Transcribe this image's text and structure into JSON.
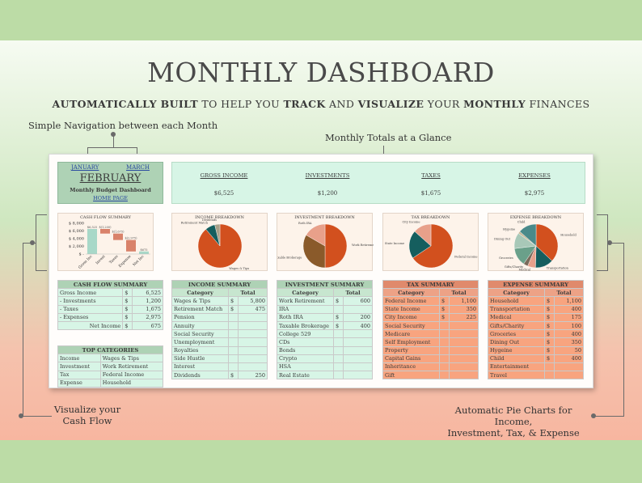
{
  "header": {
    "title": "MONTHLY DASHBOARD",
    "subtitle_parts": [
      {
        "text": "AUTOMATICALLY BUILT",
        "bold": true
      },
      {
        "text": " TO HELP YOU ",
        "bold": false
      },
      {
        "text": "TRACK",
        "bold": true
      },
      {
        "text": " AND ",
        "bold": false
      },
      {
        "text": "VISUALIZE",
        "bold": true
      },
      {
        "text": " YOUR ",
        "bold": false
      },
      {
        "text": "MONTHLY",
        "bold": true
      },
      {
        "text": " FINANCES",
        "bold": false
      }
    ]
  },
  "callouts": {
    "navigation": "Simple Navigation between each Month",
    "totals": "Monthly Totals at a Glance",
    "cashflow_line1": "Visualize your",
    "cashflow_line2": "Cash Flow",
    "pies_line1": "Automatic Pie Charts for Income,",
    "pies_line2": "Investment, Tax, & Expense"
  },
  "nav": {
    "prev": "JANUARY",
    "next": "MARCH",
    "month": "FEBRUARY",
    "subtitle": "Monthly Budget Dashboard",
    "home": "HOME PAGE"
  },
  "totals": [
    {
      "label": "GROSS INCOME",
      "value": "$6,525"
    },
    {
      "label": "INVESTMENTS",
      "value": "$1,200"
    },
    {
      "label": "TAXES",
      "value": "$1,675"
    },
    {
      "label": "EXPENSES",
      "value": "$2,975"
    }
  ],
  "chart_data": [
    {
      "type": "bar",
      "title": "CASH FLOW SUMMARY",
      "categories": [
        "Gross Inc",
        "Invest",
        "Taxes",
        "Expense",
        "Net Inc"
      ],
      "values": [
        6525,
        -1200,
        -1675,
        -2975,
        675
      ],
      "data_labels": [
        "$6,525",
        "$(1,200)",
        "$(1,675)",
        "$(2,975)",
        "$675"
      ],
      "y_ticks": [
        "$ 8,000",
        "$ 6,000",
        "$ 4,000",
        "$ 2,000",
        "$ -"
      ],
      "ylim": [
        0,
        8000
      ],
      "colors": [
        "#a8d8c8",
        "#d9826a",
        "#d9826a",
        "#d9826a",
        "#a8d8c8"
      ]
    },
    {
      "type": "pie",
      "title": "INCOME BREAKDOWN",
      "labels": [
        "Wages & Tips",
        "Retirement Match",
        "Dividends"
      ],
      "values": [
        5800,
        475,
        250
      ],
      "colors": [
        "#d2501e",
        "#155e5e",
        "#a8a088"
      ]
    },
    {
      "type": "pie",
      "title": "INVESTMENT BREAKDOWN",
      "labels": [
        "Work Retirement",
        "Taxable Brokerage",
        "Roth IRA"
      ],
      "values": [
        600,
        400,
        200
      ],
      "colors": [
        "#d2501e",
        "#8a5a2a",
        "#e8a08a"
      ]
    },
    {
      "type": "pie",
      "title": "TAX BREAKDOWN",
      "labels": [
        "Federal Income",
        "State Income",
        "City Income"
      ],
      "values": [
        1100,
        350,
        225
      ],
      "colors": [
        "#d2501e",
        "#155e5e",
        "#e8a08a"
      ]
    },
    {
      "type": "pie",
      "title": "EXPENSE BREAKDOWN",
      "labels": [
        "Household",
        "Transportation",
        "Medical",
        "Gifts/Charity",
        "Groceries",
        "Dining Out",
        "Hygeine",
        "Child"
      ],
      "values": [
        1100,
        400,
        175,
        100,
        400,
        350,
        50,
        400
      ],
      "colors": [
        "#d2501e",
        "#155e5e",
        "#e8a08a",
        "#7a6a5a",
        "#6aa08a",
        "#a8c8b8",
        "#c8b898",
        "#4a8a8a"
      ]
    }
  ],
  "cashflow_summary": {
    "title": "CASH FLOW SUMMARY",
    "rows": [
      {
        "label": "Gross Income",
        "cur": "$",
        "value": "6,525"
      },
      {
        "label": "- Investments",
        "cur": "$",
        "value": "1,200"
      },
      {
        "label": "- Taxes",
        "cur": "$",
        "value": "1,675"
      },
      {
        "label": "- Expenses",
        "cur": "$",
        "value": "2,975"
      }
    ],
    "net_label": "Net Income",
    "net_cur": "$",
    "net_value": "675"
  },
  "top_categories": {
    "title": "TOP CATEGORIES",
    "rows": [
      [
        "Income",
        "Wages & Tips"
      ],
      [
        "Investment",
        "Work Retirement"
      ],
      [
        "Tax",
        "Federal Income"
      ],
      [
        "Expense",
        "Household"
      ]
    ]
  },
  "tables": [
    {
      "title": "INCOME SUMMARY",
      "col1": "Category",
      "col2": "Total",
      "rows": [
        [
          "Wages & Tips",
          "$",
          "5,800"
        ],
        [
          "Retirement Match",
          "$",
          "475"
        ],
        [
          "Pension",
          "",
          ""
        ],
        [
          "Annuity",
          "",
          ""
        ],
        [
          "Social Security",
          "",
          ""
        ],
        [
          "Unemployment",
          "",
          ""
        ],
        [
          "Royalties",
          "",
          ""
        ],
        [
          "Side Hustle",
          "",
          ""
        ],
        [
          "Interest",
          "",
          ""
        ],
        [
          "Dividends",
          "$",
          "250"
        ]
      ]
    },
    {
      "title": "INVESTMENT SUMMARY",
      "col1": "Category",
      "col2": "Total",
      "rows": [
        [
          "Work Retirement",
          "$",
          "600"
        ],
        [
          "IRA",
          "",
          ""
        ],
        [
          "Roth IRA",
          "$",
          "200"
        ],
        [
          "Taxable Brokerage",
          "$",
          "400"
        ],
        [
          "College 529",
          "",
          ""
        ],
        [
          "CDs",
          "",
          ""
        ],
        [
          "Bonds",
          "",
          ""
        ],
        [
          "Crypto",
          "",
          ""
        ],
        [
          "HSA",
          "",
          ""
        ],
        [
          "Real Estate",
          "",
          ""
        ]
      ]
    },
    {
      "title": "TAX SUMMARY",
      "col1": "Category",
      "col2": "Total",
      "rows": [
        [
          "Federal Income",
          "$",
          "1,100"
        ],
        [
          "State Income",
          "$",
          "350"
        ],
        [
          "City Income",
          "$",
          "225"
        ],
        [
          "Social Security",
          "",
          ""
        ],
        [
          "Medicare",
          "",
          ""
        ],
        [
          "Self Employment",
          "",
          ""
        ],
        [
          "Property",
          "",
          ""
        ],
        [
          "Capital Gains",
          "",
          ""
        ],
        [
          "Inheritance",
          "",
          ""
        ],
        [
          "Gift",
          "",
          ""
        ]
      ]
    },
    {
      "title": "EXPENSE SUMMARY",
      "col1": "Category",
      "col2": "Total",
      "rows": [
        [
          "Household",
          "$",
          "1,100"
        ],
        [
          "Transportation",
          "$",
          "400"
        ],
        [
          "Medical",
          "$",
          "175"
        ],
        [
          "Gifts/Charity",
          "$",
          "100"
        ],
        [
          "Groceries",
          "$",
          "400"
        ],
        [
          "Dining Out",
          "$",
          "350"
        ],
        [
          "Hygeine",
          "$",
          "50"
        ],
        [
          "Child",
          "$",
          "400"
        ],
        [
          "Entertainment",
          "",
          ""
        ],
        [
          "Travel",
          "",
          ""
        ]
      ]
    }
  ]
}
